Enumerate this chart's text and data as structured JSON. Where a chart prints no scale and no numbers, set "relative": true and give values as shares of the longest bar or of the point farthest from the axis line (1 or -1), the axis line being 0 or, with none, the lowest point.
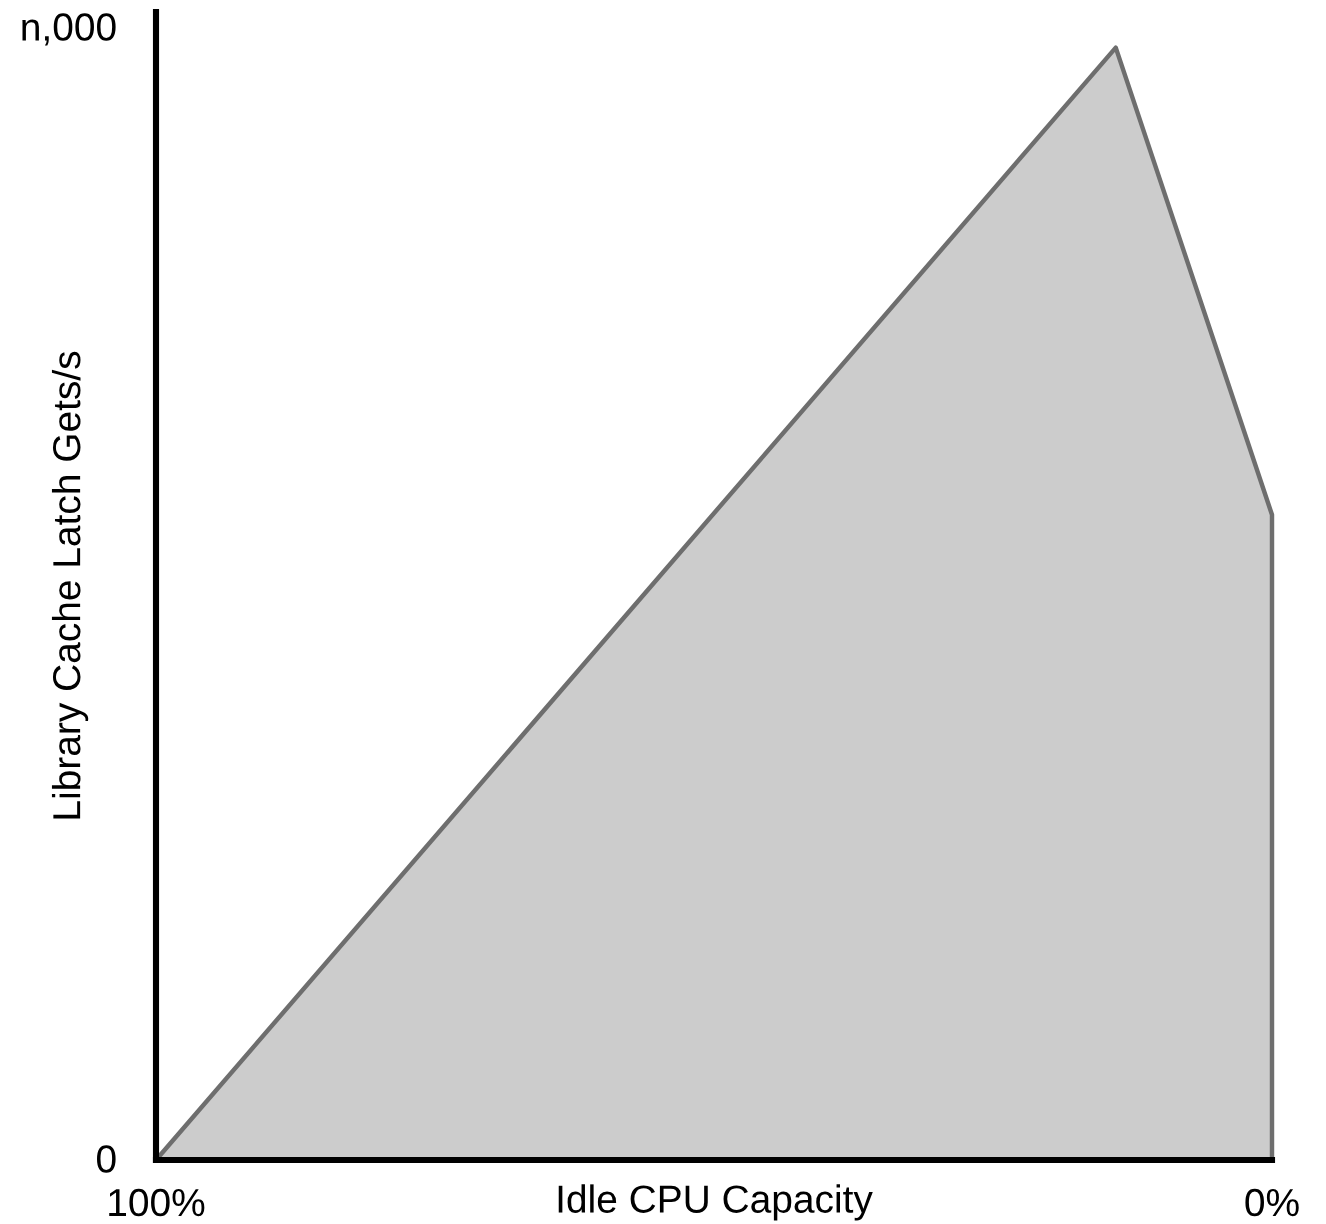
{
  "chart_data": {
    "type": "area",
    "xlabel": "Idle CPU Capacity",
    "ylabel": "Library Cache Latch Gets/s",
    "relative": true,
    "annotations": [
      "n,000",
      "0"
    ],
    "x": [
      100,
      14,
      0
    ],
    "series": [
      {
        "color": "#cccccc",
        "values": [
          0,
          1,
          0.58
        ]
      }
    ],
    "xlim": [
      100,
      0
    ],
    "xticks": [
      {
        "value": 100,
        "label": "100%"
      },
      {
        "value": 0,
        "label": "0%"
      }
    ]
  }
}
